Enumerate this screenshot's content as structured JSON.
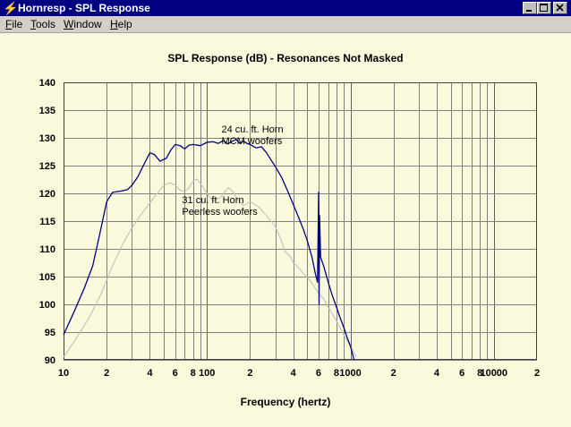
{
  "window": {
    "title": "Hornresp - SPL Response",
    "buttons": {
      "minimize": "minimize-icon",
      "maximize": "maximize-icon",
      "close": "close-icon"
    }
  },
  "menu": {
    "file": "File",
    "tools": "Tools",
    "window": "Window",
    "help": "Help"
  },
  "chart_data": {
    "type": "line",
    "title": "SPL Response (dB) - Resonances Not Masked",
    "xlabel": "Frequency (hertz)",
    "ylabel": "",
    "xscale": "log",
    "xlim": [
      10,
      20000
    ],
    "ylim": [
      90,
      140
    ],
    "yticks": [
      140,
      135,
      130,
      125,
      120,
      115,
      110,
      105,
      100,
      95,
      90
    ],
    "xticks": [
      {
        "v": 10,
        "label": "10"
      },
      {
        "v": 20,
        "label": "2"
      },
      {
        "v": 40,
        "label": "4"
      },
      {
        "v": 60,
        "label": "6"
      },
      {
        "v": 80,
        "label": "8"
      },
      {
        "v": 100,
        "label": "100"
      },
      {
        "v": 200,
        "label": "2"
      },
      {
        "v": 400,
        "label": "4"
      },
      {
        "v": 600,
        "label": "6"
      },
      {
        "v": 800,
        "label": "8"
      },
      {
        "v": 1000,
        "label": "1000"
      },
      {
        "v": 2000,
        "label": "2"
      },
      {
        "v": 4000,
        "label": "4"
      },
      {
        "v": 6000,
        "label": "6"
      },
      {
        "v": 8000,
        "label": "8"
      },
      {
        "v": 10000,
        "label": "10000"
      },
      {
        "v": 20000,
        "label": "2"
      }
    ],
    "grid": true,
    "colors": {
      "background": "#fbf9dc",
      "grid": "#808080",
      "series1": "#000080",
      "series2": "#c0c0c0"
    },
    "annotations": [
      {
        "lines": [
          "24 cu. ft. Horn",
          "MCM woofers"
        ],
        "x": 150,
        "y": 131
      },
      {
        "lines": [
          "31 cu. ft. Horn",
          "Peerless woofers"
        ],
        "x": 68,
        "y": 118.2
      }
    ],
    "series": [
      {
        "color": "#000080",
        "points": [
          [
            10,
            94.5
          ],
          [
            12,
            99
          ],
          [
            14,
            103
          ],
          [
            16,
            107
          ],
          [
            18,
            113
          ],
          [
            20,
            118.5
          ],
          [
            22,
            120.2
          ],
          [
            25,
            120.4
          ],
          [
            28,
            120.7
          ],
          [
            30,
            121.5
          ],
          [
            33,
            123
          ],
          [
            36,
            125
          ],
          [
            40,
            127.3
          ],
          [
            43,
            127
          ],
          [
            47,
            125.8
          ],
          [
            52,
            126.3
          ],
          [
            56,
            127.8
          ],
          [
            60,
            128.8
          ],
          [
            65,
            128.6
          ],
          [
            70,
            128
          ],
          [
            75,
            128.7
          ],
          [
            80,
            128.8
          ],
          [
            90,
            128.6
          ],
          [
            100,
            129.2
          ],
          [
            110,
            129.3
          ],
          [
            120,
            129
          ],
          [
            130,
            129.5
          ],
          [
            140,
            128.9
          ],
          [
            150,
            129.4
          ],
          [
            160,
            129.7
          ],
          [
            170,
            129
          ],
          [
            180,
            129.4
          ],
          [
            190,
            129
          ],
          [
            200,
            128.8
          ],
          [
            220,
            128.2
          ],
          [
            240,
            128.4
          ],
          [
            260,
            127.3
          ],
          [
            280,
            126
          ],
          [
            300,
            124.8
          ],
          [
            330,
            123
          ],
          [
            360,
            120.8
          ],
          [
            400,
            118
          ],
          [
            430,
            116
          ],
          [
            470,
            113.5
          ],
          [
            500,
            111.5
          ],
          [
            540,
            108.5
          ],
          [
            570,
            105.5
          ],
          [
            590,
            104
          ],
          [
            600,
            120.2
          ],
          [
            605,
            100
          ],
          [
            610,
            116
          ],
          [
            620,
            108.5
          ],
          [
            650,
            107
          ],
          [
            700,
            104
          ],
          [
            750,
            101.5
          ],
          [
            800,
            99.5
          ],
          [
            850,
            97.5
          ],
          [
            900,
            95.8
          ],
          [
            950,
            94
          ],
          [
            1000,
            92.5
          ],
          [
            1060,
            90
          ]
        ]
      },
      {
        "color": "#c0c0c0",
        "points": [
          [
            10,
            90.5
          ],
          [
            12,
            93.5
          ],
          [
            15,
            97.5
          ],
          [
            18,
            101.5
          ],
          [
            22,
            107
          ],
          [
            26,
            111
          ],
          [
            30,
            113.8
          ],
          [
            35,
            116.3
          ],
          [
            40,
            118.3
          ],
          [
            45,
            120
          ],
          [
            50,
            121.4
          ],
          [
            55,
            121.9
          ],
          [
            60,
            121.5
          ],
          [
            65,
            120.6
          ],
          [
            70,
            120.3
          ],
          [
            75,
            121
          ],
          [
            80,
            122.2
          ],
          [
            85,
            122.6
          ],
          [
            90,
            121.8
          ],
          [
            100,
            120
          ],
          [
            110,
            118.6
          ],
          [
            125,
            119.3
          ],
          [
            140,
            121
          ],
          [
            150,
            120.5
          ],
          [
            165,
            118.8
          ],
          [
            180,
            117.8
          ],
          [
            200,
            118.5
          ],
          [
            210,
            118.2
          ],
          [
            230,
            117.5
          ],
          [
            250,
            116.5
          ],
          [
            280,
            115
          ],
          [
            300,
            114
          ],
          [
            330,
            111.5
          ],
          [
            350,
            109.5
          ],
          [
            380,
            108.7
          ],
          [
            400,
            107.5
          ],
          [
            430,
            106.8
          ],
          [
            470,
            105.5
          ],
          [
            500,
            105
          ],
          [
            550,
            103.5
          ],
          [
            600,
            102
          ],
          [
            650,
            101
          ],
          [
            700,
            99.5
          ],
          [
            800,
            97
          ],
          [
            900,
            94.5
          ],
          [
            1000,
            92.5
          ],
          [
            1100,
            90.5
          ]
        ]
      }
    ]
  }
}
